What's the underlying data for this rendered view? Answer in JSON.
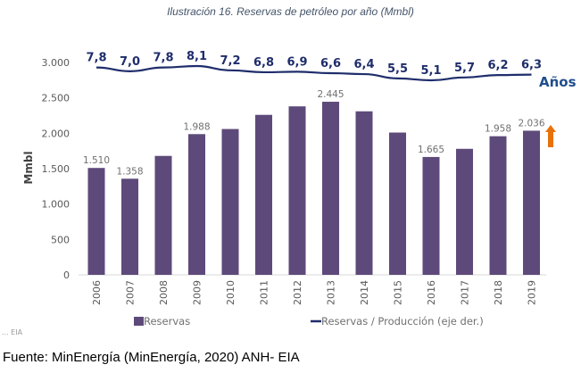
{
  "caption": "Ilustración 16. Reservas de petróleo por año (Mmbl)",
  "source": "Fuente: MinEnergía (MinEnergía, 2020) ANH- EIA",
  "chart_data": {
    "type": "bar",
    "title": "Reservas de petróleo por año (Mmbl)",
    "xlabel": "",
    "ylabel": "Mmbl",
    "ylim": [
      0,
      3000
    ],
    "yticks": [
      "0",
      "500",
      "1.000",
      "1.500",
      "2.000",
      "2.500",
      "3.000"
    ],
    "ytick_values": [
      0,
      500,
      1000,
      1500,
      2000,
      2500,
      3000
    ],
    "categories": [
      "2006",
      "2007",
      "2008",
      "2009",
      "2010",
      "2011",
      "2012",
      "2013",
      "2014",
      "2015",
      "2016",
      "2017",
      "2018",
      "2019"
    ],
    "series": [
      {
        "name": "Reservas",
        "type": "bar",
        "color": "#5e4a7a",
        "values": [
          1510,
          1358,
          1680,
          1988,
          2060,
          2260,
          2380,
          2445,
          2310,
          2010,
          1665,
          1780,
          1958,
          2036
        ],
        "labels": [
          "1.510",
          "1.358",
          "",
          "1.988",
          "",
          "",
          "",
          "2.445",
          "",
          "",
          "1.665",
          "",
          "1.958",
          "2.036"
        ]
      },
      {
        "name": "Reservas / Producción (eje der.)",
        "type": "line",
        "axis": "right",
        "color": "#1f2d6b",
        "values": [
          7.8,
          7.0,
          7.8,
          8.1,
          7.2,
          6.8,
          6.9,
          6.6,
          6.4,
          5.5,
          5.1,
          5.7,
          6.2,
          6.3
        ],
        "labels": [
          "7,8",
          "7,0",
          "7,8",
          "8,1",
          "7,2",
          "6,8",
          "6,9",
          "6,6",
          "6,4",
          "5,5",
          "5,1",
          "5,7",
          "6,2",
          "6,3"
        ],
        "unit_label": "Años"
      }
    ],
    "legend": [
      "Reservas",
      "Reservas / Producción (eje der.)"
    ],
    "legend_position": "bottom",
    "annotation": {
      "type": "up-arrow",
      "color": "#e8710a",
      "near": "2019"
    },
    "grid": false,
    "source_fragment": "... EIA"
  }
}
